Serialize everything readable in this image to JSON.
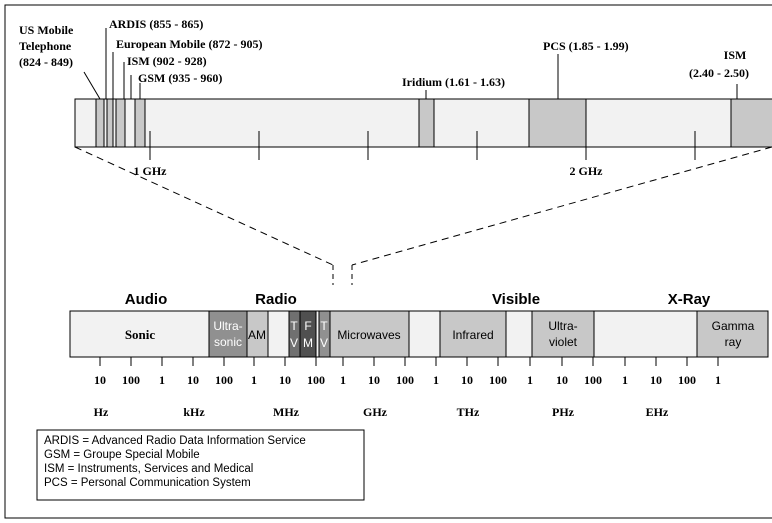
{
  "top_band": {
    "labels": {
      "us_mobile_1": "US Mobile",
      "us_mobile_2": "Telephone",
      "us_mobile_3": "(824 - 849)",
      "ardis": "ARDIS (855 - 865)",
      "european": "European Mobile (872 - 905)",
      "ism_902": "ISM (902 - 928)",
      "gsm": "GSM (935 - 960)",
      "iridium": "Iridium (1.61 - 1.63)",
      "pcs": "PCS (1.85 - 1.99)",
      "ism_24_1": "ISM",
      "ism_24_2": "(2.40 - 2.50)"
    },
    "axis_labels": {
      "one_ghz": "1 GHz",
      "two_ghz": "2 GHz"
    }
  },
  "spectrum": {
    "group_titles": {
      "audio": "Audio",
      "radio": "Radio",
      "visible": "Visible",
      "xray": "X-Ray"
    },
    "bands": {
      "sonic": "Sonic",
      "ultrasonic_1": "Ultra-",
      "ultrasonic_2": "sonic",
      "am": "AM",
      "tv1_a": "T",
      "tv1_b": "V",
      "fm_a": "F",
      "fm_b": "M",
      "tv2_a": "T",
      "tv2_b": "V",
      "microwaves": "Microwaves",
      "infrared": "Infrared",
      "ultraviolet_1": "Ultra-",
      "ultraviolet_2": "violet",
      "gamma_1": "Gamma",
      "gamma_2": "ray"
    },
    "tick_labels": [
      "10",
      "100",
      "1",
      "10",
      "100",
      "1",
      "10",
      "100",
      "1",
      "10",
      "100",
      "1",
      "10",
      "100",
      "1",
      "10",
      "100",
      "1",
      "10",
      "100",
      "1"
    ],
    "unit_labels": [
      "Hz",
      "kHz",
      "MHz",
      "GHz",
      "THz",
      "PHz",
      "EHz"
    ]
  },
  "legend": {
    "lines": [
      "ARDIS = Advanced Radio Data Information Service",
      "GSM = Groupe Special Mobile",
      "ISM = Instruments, Services and Medical",
      "PCS = Personal Communication System"
    ]
  },
  "colors": {
    "band_light": "#f2f2f2",
    "band_medium": "#c8c8c8",
    "band_dark": "#909090",
    "band_darker": "#707070",
    "stroke": "#000000"
  }
}
